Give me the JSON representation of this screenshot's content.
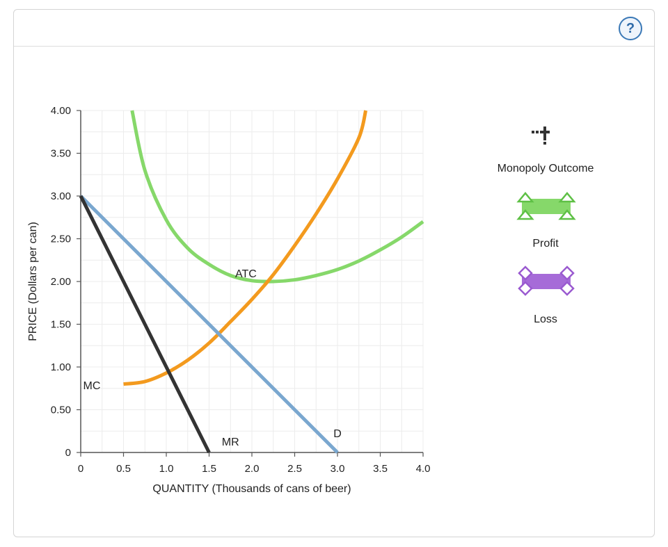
{
  "help": {
    "label": "?"
  },
  "chart_data": {
    "type": "line",
    "xlabel": "QUANTITY (Thousands of cans of beer)",
    "ylabel": "PRICE (Dollars per can)",
    "xlim": [
      0,
      4
    ],
    "ylim": [
      0,
      4
    ],
    "x_ticks": [
      0,
      0.5,
      1.0,
      1.5,
      2.0,
      2.5,
      3.0,
      3.5,
      4.0
    ],
    "x_tick_labels": [
      "0",
      "0.5",
      "1.0",
      "1.5",
      "2.0",
      "2.5",
      "3.0",
      "3.5",
      "4.0"
    ],
    "y_ticks": [
      0,
      0.5,
      1.0,
      1.5,
      2.0,
      2.5,
      3.0,
      3.5,
      4.0
    ],
    "y_tick_labels": [
      "0",
      "0.50",
      "1.00",
      "1.50",
      "2.00",
      "2.50",
      "3.00",
      "3.50",
      "4.00"
    ],
    "grid": true,
    "series": [
      {
        "name": "MR",
        "label": "MR",
        "color": "#333333",
        "x": [
          0,
          1.5
        ],
        "y": [
          3.0,
          0.0
        ]
      },
      {
        "name": "D",
        "label": "D",
        "color": "#7aa7cf",
        "x": [
          0,
          3.0
        ],
        "y": [
          3.0,
          0.0
        ]
      },
      {
        "name": "MC",
        "label": "MC",
        "color": "#f39a1e",
        "x": [
          0.5,
          0.75,
          1.0,
          1.25,
          1.5,
          1.75,
          2.0,
          2.25,
          2.5,
          2.75,
          3.0,
          3.25,
          3.33
        ],
        "y": [
          0.8,
          0.83,
          0.93,
          1.08,
          1.28,
          1.53,
          1.79,
          2.08,
          2.42,
          2.79,
          3.2,
          3.68,
          4.0
        ]
      },
      {
        "name": "ATC",
        "label": "ATC",
        "color": "#86d86a",
        "x": [
          0.6,
          0.75,
          1.0,
          1.25,
          1.5,
          1.75,
          2.0,
          2.25,
          2.5,
          2.75,
          3.0,
          3.25,
          3.5,
          3.75,
          4.0
        ],
        "y": [
          4.0,
          3.3,
          2.72,
          2.39,
          2.2,
          2.07,
          2.01,
          2.0,
          2.02,
          2.07,
          2.14,
          2.24,
          2.37,
          2.52,
          2.7
        ]
      }
    ],
    "annotations": [
      {
        "text": "MR",
        "x": 1.75,
        "y": 0.12
      },
      {
        "text": "D",
        "x": 3.0,
        "y": 0.22
      },
      {
        "text": "MC",
        "x": 0.13,
        "y": 0.78
      },
      {
        "text": "ATC",
        "x": 1.93,
        "y": 2.09
      }
    ]
  },
  "palette": {
    "monopoly_outcome": {
      "label": "Monopoly Outcome",
      "color": "#333333"
    },
    "profit": {
      "label": "Profit",
      "color": "#86d86a",
      "stroke": "#5ec045"
    },
    "loss": {
      "label": "Loss",
      "color": "#a66bd8",
      "stroke": "#9a5ad0"
    }
  }
}
